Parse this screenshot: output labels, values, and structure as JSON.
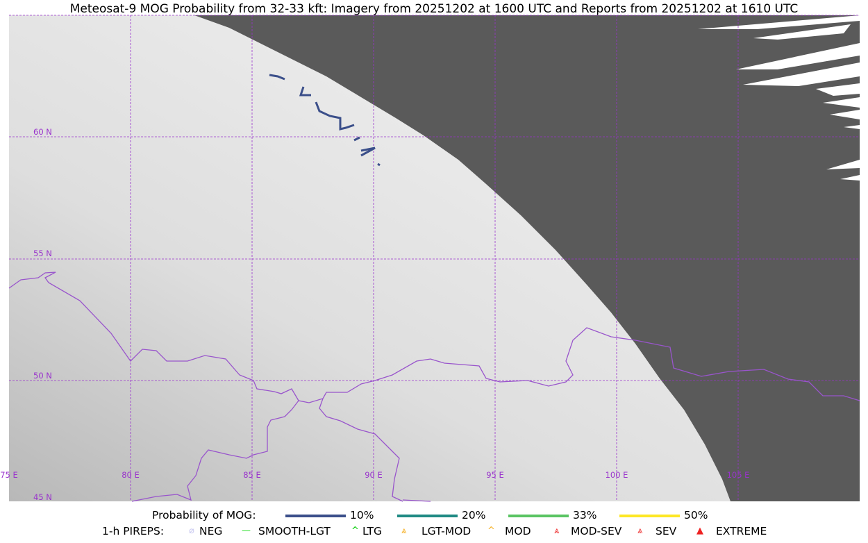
{
  "title": "Meteosat-9 MOG Probability from 32-33 kft: Imagery from 20251202 at 1600 UTC and Reports from 20251202 at 1610 UTC",
  "map": {
    "lat_labels": [
      "60 N",
      "55 N",
      "50 N",
      "45 N"
    ],
    "lon_labels": [
      "75 E",
      "80 E",
      "85 E",
      "90 E",
      "95 E",
      "100 E",
      "105 E"
    ],
    "colors": {
      "grid": "#9933cc",
      "border": "#9955cc",
      "no_data": "#5a5a5a",
      "contour_10": "#3b4f8a"
    }
  },
  "legend": {
    "prob_label": "Probability of MOG:",
    "prob_items": [
      {
        "label": "10%",
        "color": "#3b4f8a"
      },
      {
        "label": "20%",
        "color": "#1f8a84"
      },
      {
        "label": "33%",
        "color": "#5ac463"
      },
      {
        "label": "50%",
        "color": "#fde725"
      }
    ],
    "pirep_label": "1-h PIREPS:",
    "pirep_items": [
      {
        "label": "NEG",
        "icon": "neg-icon",
        "color": "#c8c8f0"
      },
      {
        "label": "SMOOTH-LGT",
        "icon": "smooth-lgt-icon",
        "color": "#22dd22"
      },
      {
        "label": "LTG",
        "icon": "ltg-icon",
        "color": "#00cc00"
      },
      {
        "label": "LGT-MOD",
        "icon": "lgt-mod-icon",
        "color": "#f5b024"
      },
      {
        "label": "MOD",
        "icon": "mod-icon",
        "color": "#f5b024"
      },
      {
        "label": "MOD-SEV",
        "icon": "mod-sev-icon",
        "color": "#ee3333"
      },
      {
        "label": "SEV",
        "icon": "sev-icon",
        "color": "#ee3333"
      },
      {
        "label": "EXTREME",
        "icon": "extreme-icon",
        "color": "#ee2222"
      }
    ]
  }
}
